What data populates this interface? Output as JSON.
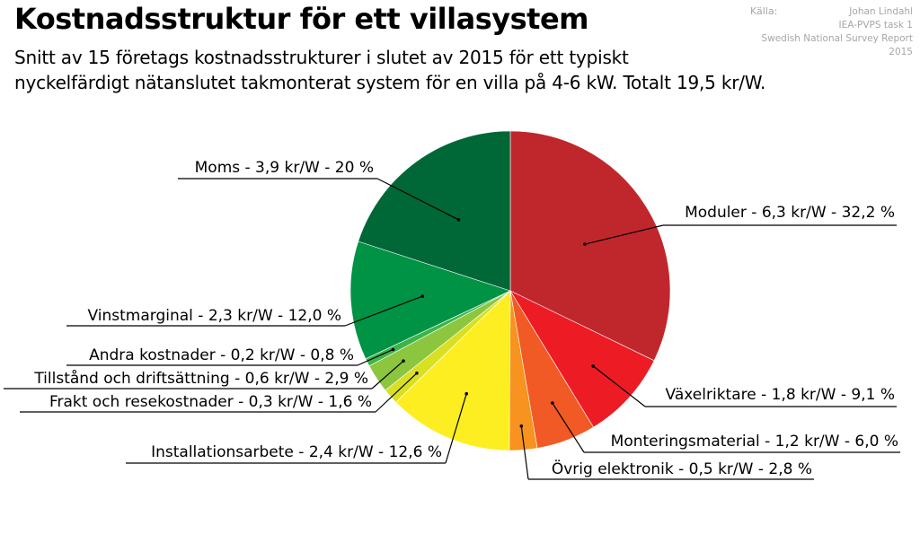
{
  "header": {
    "title": "Kostnadsstruktur för ett villasystem",
    "subtitle_line1": "Snitt av 15 företags kostnadsstrukturer i slutet av 2015 för ett typiskt",
    "subtitle_line2": "nyckelfärdigt nätanslutet takmonterat system för en villa på 4-6 kW. Totalt 19,5 kr/W."
  },
  "source": {
    "label": "Källa:",
    "lines": [
      "Johan Lindahl",
      "IEA-PVPS task 1",
      "Swedish National Survey Report",
      "2015"
    ]
  },
  "chart_data": {
    "type": "pie",
    "title": "Kostnadsstruktur för ett villasystem",
    "total_text": "Totalt 19,5 kr/W",
    "unit": "kr/W",
    "start_angle_deg": 0,
    "direction": "clockwise",
    "slices": [
      {
        "name": "Moduler",
        "value": 6.3,
        "percent": 32.2,
        "color": "#c0272d",
        "label": "Moduler - 6,3 kr/W - 32,2 %"
      },
      {
        "name": "Växelriktare",
        "value": 1.8,
        "percent": 9.1,
        "color": "#ed1c24",
        "label": "Växelriktare - 1,8 kr/W - 9,1 %"
      },
      {
        "name": "Monteringsmaterial",
        "value": 1.2,
        "percent": 6.0,
        "color": "#f15a24",
        "label": "Monteringsmaterial - 1,2 kr/W - 6,0 %"
      },
      {
        "name": "Övrig elektronik",
        "value": 0.5,
        "percent": 2.8,
        "color": "#f7931e",
        "label": "Övrig elektronik - 0,5 kr/W - 2,8 %"
      },
      {
        "name": "Installationsarbete",
        "value": 2.4,
        "percent": 12.6,
        "color": "#fcee21",
        "label": "Installationsarbete - 2,4 kr/W - 12,6 %"
      },
      {
        "name": "Frakt och resekostnader",
        "value": 0.3,
        "percent": 1.6,
        "color": "#d9e021",
        "label": "Frakt och resekostnader - 0,3 kr/W - 1,6 %"
      },
      {
        "name": "Tillstånd och driftsättning",
        "value": 0.6,
        "percent": 2.9,
        "color": "#8cc63f",
        "label": "Tillstånd och driftsättning - 0,6 kr/W - 2,9 %"
      },
      {
        "name": "Andra kostnader",
        "value": 0.2,
        "percent": 0.8,
        "color": "#39b54a",
        "label": "Andra kostnader - 0,2 kr/W - 0,8 %"
      },
      {
        "name": "Vinstmarginal",
        "value": 2.3,
        "percent": 12.0,
        "color": "#009245",
        "label": "Vinstmarginal - 2,3 kr/W - 12,0 %"
      },
      {
        "name": "Moms",
        "value": 3.9,
        "percent": 20.0,
        "color": "#006837",
        "label": "Moms - 3,9 kr/W - 20 %"
      }
    ]
  }
}
